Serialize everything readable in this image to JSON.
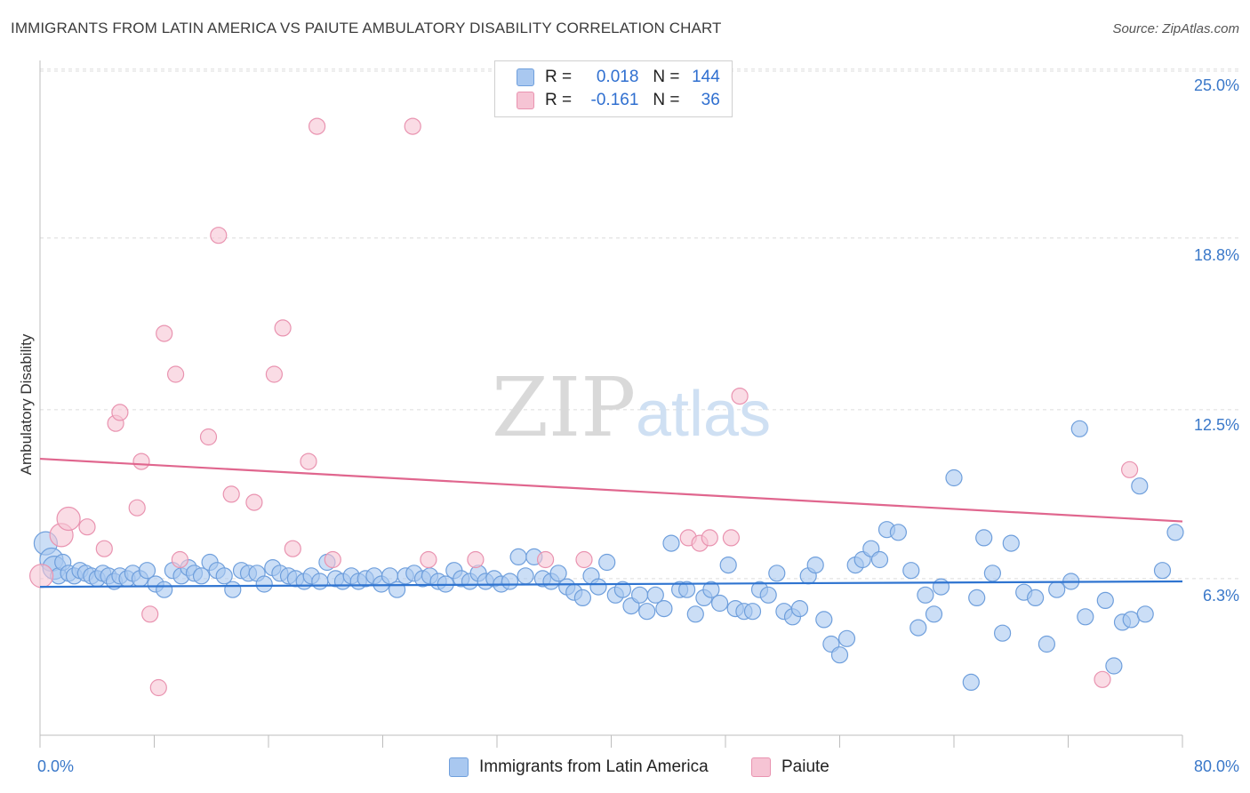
{
  "title": "IMMIGRANTS FROM LATIN AMERICA VS PAIUTE AMBULATORY DISABILITY CORRELATION CHART",
  "source": "Source: ZipAtlas.com",
  "watermark": {
    "zip": "ZIP",
    "atlas": "atlas"
  },
  "colors": {
    "blue_fill": "#a9c8f0",
    "blue_stroke": "#6f9fdc",
    "blue_line": "#2f74d0",
    "pink_fill": "#f6c4d4",
    "pink_stroke": "#e993b0",
    "pink_line": "#e0668e",
    "tick_text": "#3a78c9",
    "grid": "#dcdcdc"
  },
  "legend": {
    "rows": [
      {
        "r_label": "R =",
        "r_value": "0.018",
        "n_label": "N =",
        "n_value": "144"
      },
      {
        "r_label": "R =",
        "r_value": "-0.161",
        "n_label": "N =",
        "n_value": "36"
      }
    ]
  },
  "bottom_legend": [
    "Immigrants from Latin America",
    "Paiute"
  ],
  "chart_data": {
    "type": "scatter",
    "title": "IMMIGRANTS FROM LATIN AMERICA VS PAIUTE AMBULATORY DISABILITY CORRELATION CHART",
    "xlabel": "",
    "ylabel": "Ambulatory Disability",
    "xlim": [
      0,
      80
    ],
    "ylim": [
      0,
      25
    ],
    "x_tick_labels": [
      "0.0%",
      "80.0%"
    ],
    "y_ticks": [
      6.3,
      12.5,
      18.8,
      25.0
    ],
    "y_tick_labels": [
      "6.3%",
      "12.5%",
      "18.8%",
      "25.0%"
    ],
    "grid": "horizontal dashed",
    "legend_position": "top-center",
    "series": [
      {
        "name": "Immigrants from Latin America",
        "trend": {
          "x": [
            0,
            80
          ],
          "y": [
            6.0,
            6.2
          ]
        },
        "points": [
          [
            0.4,
            7.6
          ],
          [
            0.8,
            7.0
          ],
          [
            1.0,
            6.7
          ],
          [
            1.3,
            6.4
          ],
          [
            1.6,
            6.9
          ],
          [
            2.0,
            6.5
          ],
          [
            2.4,
            6.4
          ],
          [
            2.8,
            6.6
          ],
          [
            3.2,
            6.5
          ],
          [
            3.6,
            6.4
          ],
          [
            4.0,
            6.3
          ],
          [
            4.4,
            6.5
          ],
          [
            4.8,
            6.4
          ],
          [
            5.2,
            6.2
          ],
          [
            5.6,
            6.4
          ],
          [
            6.1,
            6.3
          ],
          [
            6.5,
            6.5
          ],
          [
            7.0,
            6.3
          ],
          [
            7.5,
            6.6
          ],
          [
            8.1,
            6.1
          ],
          [
            8.7,
            5.9
          ],
          [
            9.3,
            6.6
          ],
          [
            9.9,
            6.4
          ],
          [
            10.4,
            6.7
          ],
          [
            10.8,
            6.5
          ],
          [
            11.3,
            6.4
          ],
          [
            11.9,
            6.9
          ],
          [
            12.4,
            6.6
          ],
          [
            12.9,
            6.4
          ],
          [
            13.5,
            5.9
          ],
          [
            14.1,
            6.6
          ],
          [
            14.6,
            6.5
          ],
          [
            15.2,
            6.5
          ],
          [
            15.7,
            6.1
          ],
          [
            16.3,
            6.7
          ],
          [
            16.8,
            6.5
          ],
          [
            17.4,
            6.4
          ],
          [
            17.9,
            6.3
          ],
          [
            18.5,
            6.2
          ],
          [
            19.0,
            6.4
          ],
          [
            19.6,
            6.2
          ],
          [
            20.1,
            6.9
          ],
          [
            20.7,
            6.3
          ],
          [
            21.2,
            6.2
          ],
          [
            21.8,
            6.4
          ],
          [
            22.3,
            6.2
          ],
          [
            22.8,
            6.3
          ],
          [
            23.4,
            6.4
          ],
          [
            23.9,
            6.1
          ],
          [
            24.5,
            6.4
          ],
          [
            25.0,
            5.9
          ],
          [
            25.6,
            6.4
          ],
          [
            26.2,
            6.5
          ],
          [
            26.8,
            6.3
          ],
          [
            27.3,
            6.4
          ],
          [
            27.9,
            6.2
          ],
          [
            28.4,
            6.1
          ],
          [
            29.0,
            6.6
          ],
          [
            29.5,
            6.3
          ],
          [
            30.1,
            6.2
          ],
          [
            30.7,
            6.5
          ],
          [
            31.2,
            6.2
          ],
          [
            31.8,
            6.3
          ],
          [
            32.3,
            6.1
          ],
          [
            32.9,
            6.2
          ],
          [
            33.5,
            7.1
          ],
          [
            34.0,
            6.4
          ],
          [
            34.6,
            7.1
          ],
          [
            35.2,
            6.3
          ],
          [
            35.8,
            6.2
          ],
          [
            36.3,
            6.5
          ],
          [
            36.9,
            6.0
          ],
          [
            37.4,
            5.8
          ],
          [
            38.0,
            5.6
          ],
          [
            38.6,
            6.4
          ],
          [
            39.1,
            6.0
          ],
          [
            39.7,
            6.9
          ],
          [
            40.3,
            5.7
          ],
          [
            40.8,
            5.9
          ],
          [
            41.4,
            5.3
          ],
          [
            42.0,
            5.7
          ],
          [
            42.5,
            5.1
          ],
          [
            43.1,
            5.7
          ],
          [
            43.7,
            5.2
          ],
          [
            44.2,
            7.6
          ],
          [
            44.8,
            5.9
          ],
          [
            45.3,
            5.9
          ],
          [
            45.9,
            5.0
          ],
          [
            46.5,
            5.6
          ],
          [
            47.0,
            5.9
          ],
          [
            47.6,
            5.4
          ],
          [
            48.2,
            6.8
          ],
          [
            48.7,
            5.2
          ],
          [
            49.3,
            5.1
          ],
          [
            49.9,
            5.1
          ],
          [
            50.4,
            5.9
          ],
          [
            51.0,
            5.7
          ],
          [
            51.6,
            6.5
          ],
          [
            52.1,
            5.1
          ],
          [
            52.7,
            4.9
          ],
          [
            53.2,
            5.2
          ],
          [
            53.8,
            6.4
          ],
          [
            54.3,
            6.8
          ],
          [
            54.9,
            4.8
          ],
          [
            55.4,
            3.9
          ],
          [
            56.0,
            3.5
          ],
          [
            56.5,
            4.1
          ],
          [
            57.1,
            6.8
          ],
          [
            57.6,
            7.0
          ],
          [
            58.2,
            7.4
          ],
          [
            58.8,
            7.0
          ],
          [
            59.3,
            8.1
          ],
          [
            60.1,
            8.0
          ],
          [
            61.0,
            6.6
          ],
          [
            61.5,
            4.5
          ],
          [
            62.0,
            5.7
          ],
          [
            62.6,
            5.0
          ],
          [
            63.1,
            6.0
          ],
          [
            64.0,
            10.0
          ],
          [
            65.2,
            2.5
          ],
          [
            65.6,
            5.6
          ],
          [
            66.1,
            7.8
          ],
          [
            66.7,
            6.5
          ],
          [
            67.4,
            4.3
          ],
          [
            68.0,
            7.6
          ],
          [
            68.9,
            5.8
          ],
          [
            69.7,
            5.6
          ],
          [
            70.5,
            3.9
          ],
          [
            71.2,
            5.9
          ],
          [
            72.2,
            6.2
          ],
          [
            72.8,
            11.8
          ],
          [
            73.2,
            4.9
          ],
          [
            74.6,
            5.5
          ],
          [
            75.2,
            3.1
          ],
          [
            75.8,
            4.7
          ],
          [
            76.4,
            4.8
          ],
          [
            77.0,
            9.7
          ],
          [
            77.4,
            5.0
          ],
          [
            78.6,
            6.6
          ],
          [
            79.5,
            8.0
          ]
        ]
      },
      {
        "name": "Paiute",
        "trend": {
          "x": [
            0,
            80
          ],
          "y": [
            10.7,
            8.4
          ]
        },
        "points": [
          [
            0.1,
            6.4
          ],
          [
            1.5,
            7.9
          ],
          [
            2.0,
            8.5
          ],
          [
            3.3,
            8.2
          ],
          [
            4.5,
            7.4
          ],
          [
            5.3,
            12.0
          ],
          [
            5.6,
            12.4
          ],
          [
            6.8,
            8.9
          ],
          [
            7.1,
            10.6
          ],
          [
            7.7,
            5.0
          ],
          [
            8.3,
            2.3
          ],
          [
            8.7,
            15.3
          ],
          [
            9.5,
            13.8
          ],
          [
            9.8,
            7.0
          ],
          [
            11.8,
            11.5
          ],
          [
            12.5,
            18.9
          ],
          [
            13.4,
            9.4
          ],
          [
            15.0,
            9.1
          ],
          [
            16.4,
            13.8
          ],
          [
            17.0,
            15.5
          ],
          [
            17.7,
            7.4
          ],
          [
            18.8,
            10.6
          ],
          [
            19.4,
            22.9
          ],
          [
            20.5,
            7.0
          ],
          [
            26.1,
            22.9
          ],
          [
            27.2,
            7.0
          ],
          [
            30.5,
            7.0
          ],
          [
            35.4,
            7.0
          ],
          [
            38.1,
            7.0
          ],
          [
            45.4,
            7.8
          ],
          [
            46.2,
            7.6
          ],
          [
            46.9,
            7.8
          ],
          [
            48.4,
            7.8
          ],
          [
            49.0,
            13.0
          ],
          [
            74.4,
            2.6
          ],
          [
            76.3,
            10.3
          ]
        ]
      }
    ]
  }
}
